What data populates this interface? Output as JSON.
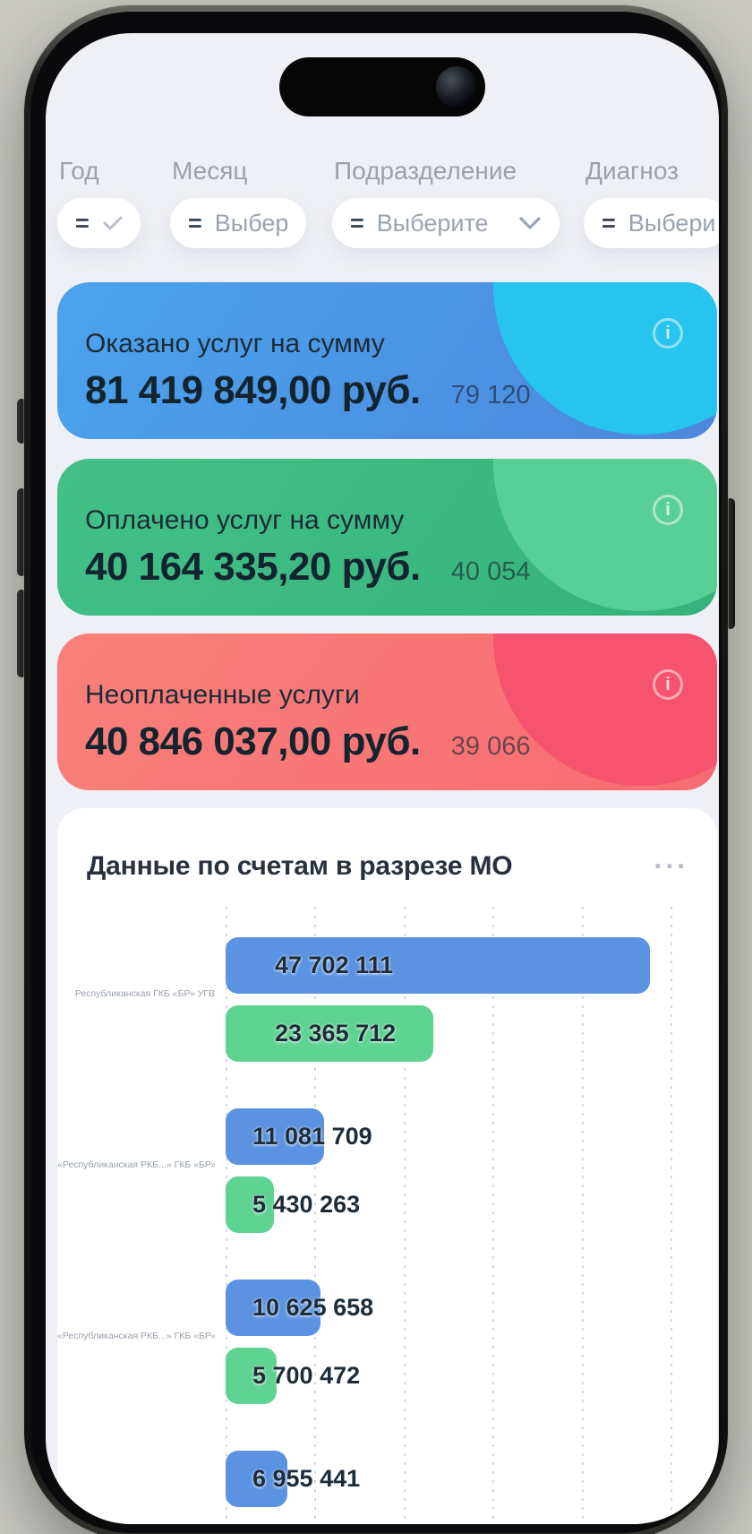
{
  "filters": {
    "items": [
      {
        "label": "Год",
        "operator": "=",
        "value": "",
        "trailing_icon": "check"
      },
      {
        "label": "Месяц",
        "operator": "=",
        "value": "Выбер",
        "trailing_icon": ""
      },
      {
        "label": "Подразделение",
        "operator": "=",
        "value": "Выберите",
        "trailing_icon": "chevron-down"
      },
      {
        "label": "Диагноз",
        "operator": "=",
        "value": "Выбери",
        "trailing_icon": ""
      }
    ]
  },
  "stat_cards": [
    {
      "title": "Оказано услуг на сумму",
      "amount": "81 419 849,00 руб.",
      "count": "79 120",
      "bg_from": "#4aa4ec",
      "bg_to": "#4d86de",
      "blob_color": "#27c4f0",
      "info_icon": "i"
    },
    {
      "title": "Оплачено услуг на сумму",
      "amount": "40 164 335,20 руб.",
      "count": "40 054",
      "bg_from": "#43c089",
      "bg_to": "#35b27b",
      "blob_color": "#58cf97",
      "info_icon": "i"
    },
    {
      "title": "Неоплаченные услуги",
      "amount": "40 846 037,00 руб.",
      "count": "39 066",
      "bg_from": "#f9807a",
      "bg_to": "#f76c72",
      "blob_color": "#f6536e",
      "info_icon": "i"
    }
  ],
  "chart": {
    "title": "Данные по счетам в разрезе МО",
    "menu_label": "...",
    "chart_data": {
      "type": "bar",
      "orientation": "horizontal",
      "grid": "dashed-vertical-gridlines",
      "legend": "none",
      "xlim": [
        0,
        50000000
      ],
      "gridline_step": 10000000,
      "series_colors": {
        "served": "#5b93e2",
        "paid": "#5ed392"
      },
      "groups": [
        {
          "category": "Республиканская ГКБ «БР» УГВ",
          "bars": [
            {
              "series": "served",
              "value": 47702111,
              "label": "47 702 111"
            },
            {
              "series": "paid",
              "value": 23365712,
              "label": "23 365 712"
            }
          ]
        },
        {
          "category": "«Республиканская РКБ...» ГКБ «БР» УГВ",
          "bars": [
            {
              "series": "served",
              "value": 11081709,
              "label": "11 081 709"
            },
            {
              "series": "paid",
              "value": 5430263,
              "label": "5 430 263"
            }
          ]
        },
        {
          "category": "«Республиканская РКБ...» ГКБ «БР» УГВ",
          "bars": [
            {
              "series": "served",
              "value": 10625658,
              "label": "10 625 658"
            },
            {
              "series": "paid",
              "value": 5700472,
              "label": "5 700 472"
            }
          ]
        },
        {
          "category": "",
          "bars": [
            {
              "series": "served",
              "value": 6955441,
              "label": "6 955 441"
            }
          ]
        }
      ]
    }
  }
}
